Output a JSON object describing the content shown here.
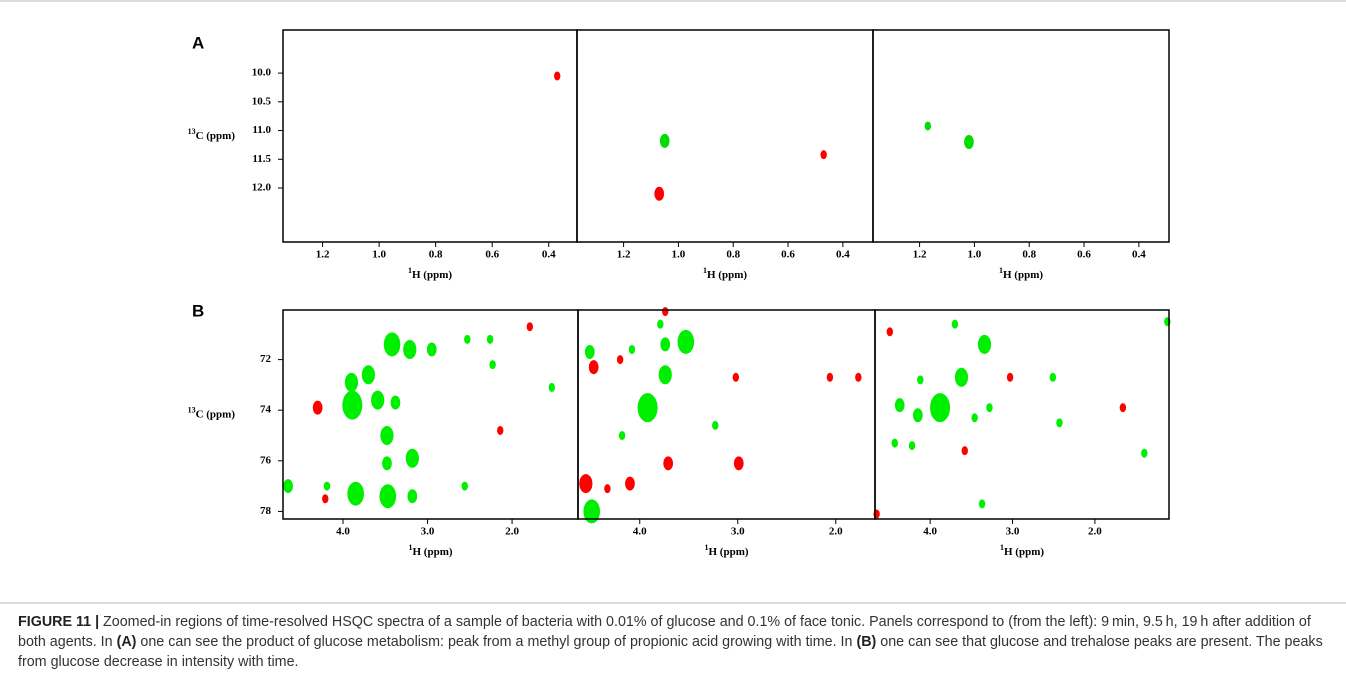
{
  "panel_labels": [
    "A",
    "B"
  ],
  "chart_data": [
    {
      "type": "scatter",
      "xlim": [
        1.34,
        0.3
      ],
      "ylim": [
        9.25,
        12.94
      ],
      "xticks": [
        1.2,
        {
          "value": 1,
          "label": "1.0"
        },
        0.8,
        0.6,
        0.4
      ],
      "yticks": [
        {
          "value": 10,
          "label": "10.0"
        },
        10.5,
        {
          "value": 11,
          "label": "11.0"
        },
        11.5,
        {
          "value": 12,
          "label": "12.0"
        }
      ],
      "x_label": {
        "sup": "1",
        "text": "H (ppm)"
      },
      "y_label": {
        "sup": "13",
        "text": "C (ppm)"
      },
      "series": [
        {
          "color": "#ff0000",
          "x": [
            0.37
          ],
          "y": [
            10.05
          ],
          "sizes": [
            1
          ]
        }
      ]
    },
    {
      "type": "scatter",
      "xlim": [
        1.37,
        0.29
      ],
      "ylim": [
        9.25,
        12.94
      ],
      "xticks": [
        1.2,
        {
          "value": 1,
          "label": "1.0"
        },
        0.8,
        0.6,
        0.4
      ],
      "x_label": {
        "sup": "1",
        "text": "H (ppm)"
      },
      "series": [
        {
          "color": "#00dd00",
          "x": [
            1.05
          ],
          "y": [
            11.18
          ],
          "sizes": [
            2
          ]
        },
        {
          "color": "#ff0000",
          "x": [
            0.47,
            1.07
          ],
          "y": [
            11.42,
            12.1
          ],
          "sizes": [
            1,
            2
          ]
        }
      ]
    },
    {
      "type": "scatter",
      "xlim": [
        1.37,
        0.29
      ],
      "ylim": [
        9.25,
        12.94
      ],
      "xticks": [
        1.2,
        {
          "value": 1,
          "label": "1.0"
        },
        0.8,
        0.6,
        0.4
      ],
      "x_label": {
        "sup": "1",
        "text": "H (ppm)"
      },
      "series": [
        {
          "color": "#00dd00",
          "x": [
            1.02,
            1.17
          ],
          "y": [
            11.2,
            10.92
          ],
          "sizes": [
            2,
            1
          ]
        }
      ]
    },
    {
      "type": "scatter",
      "xlim": [
        4.71,
        1.22
      ],
      "ylim": [
        70.04,
        78.3
      ],
      "xticks": [
        {
          "value": 4,
          "label": "4.0"
        },
        {
          "value": 3,
          "label": "3.0"
        },
        {
          "value": 2,
          "label": "2.0"
        }
      ],
      "yticks": [
        72,
        74,
        76,
        78
      ],
      "x_label": {
        "sup": "1",
        "text": "H (ppm)"
      },
      "y_label": {
        "sup": "13",
        "text": "C (ppm)"
      },
      "series": [
        {
          "color": "#00ee00",
          "x": [
            3.42,
            3.7,
            3.59,
            3.89,
            3.9,
            3.38,
            3.21,
            2.95,
            3.48,
            3.18,
            3.48,
            3.47,
            3.85,
            3.18,
            4.65,
            2.53,
            2.26,
            2.23,
            1.53,
            2.56,
            4.19
          ],
          "y": [
            71.4,
            72.6,
            73.6,
            73.8,
            72.9,
            73.7,
            71.6,
            71.6,
            75.0,
            75.9,
            76.1,
            77.4,
            77.3,
            77.4,
            77.0,
            71.2,
            71.2,
            72.2,
            73.1,
            77.0,
            77.0
          ],
          "sizes": [
            4,
            3,
            3,
            5,
            3,
            2,
            3,
            2,
            3,
            3,
            2,
            4,
            4,
            2,
            2,
            1,
            1,
            1,
            1,
            1,
            1
          ]
        },
        {
          "color": "#ff0000",
          "x": [
            4.3,
            2.14,
            1.79,
            4.21
          ],
          "y": [
            73.9,
            74.8,
            70.7,
            77.5
          ],
          "sizes": [
            2,
            1,
            1,
            1
          ]
        }
      ]
    },
    {
      "type": "scatter",
      "xlim": [
        4.63,
        1.6
      ],
      "ylim": [
        70.04,
        78.3
      ],
      "xticks": [
        {
          "value": 4,
          "label": "4.0"
        },
        {
          "value": 3,
          "label": "3.0"
        },
        {
          "value": 2,
          "label": "2.0"
        }
      ],
      "x_label": {
        "sup": "1",
        "text": "H (ppm)"
      },
      "series": [
        {
          "color": "#00ee00",
          "x": [
            3.53,
            3.92,
            3.74,
            3.74,
            4.51,
            4.08,
            4.49,
            3.23,
            4.18,
            3.79
          ],
          "y": [
            71.3,
            73.9,
            72.6,
            71.4,
            71.7,
            71.6,
            78.0,
            74.6,
            75.0,
            70.6
          ],
          "sizes": [
            4,
            5,
            3,
            2,
            2,
            1,
            4,
            1,
            1,
            1
          ]
        },
        {
          "color": "#ff0000",
          "x": [
            4.47,
            4.55,
            4.1,
            4.33,
            3.71,
            2.99,
            3.02,
            2.06,
            1.77,
            4.2,
            3.74
          ],
          "y": [
            72.3,
            76.9,
            76.9,
            77.1,
            76.1,
            76.1,
            72.7,
            72.7,
            72.7,
            72.0,
            70.1
          ],
          "sizes": [
            2,
            3,
            2,
            1,
            2,
            2,
            1,
            1,
            1,
            1,
            1
          ]
        }
      ]
    },
    {
      "type": "scatter",
      "xlim": [
        4.67,
        1.1
      ],
      "ylim": [
        70.04,
        78.3
      ],
      "xticks": [
        {
          "value": 4,
          "label": "4.0"
        },
        {
          "value": 3,
          "label": "3.0"
        },
        {
          "value": 2,
          "label": "2.0"
        }
      ],
      "x_label": {
        "sup": "1",
        "text": "H (ppm)"
      },
      "series": [
        {
          "color": "#00ee00",
          "x": [
            3.34,
            3.88,
            3.62,
            4.37,
            4.15,
            4.12,
            4.43,
            4.22,
            3.46,
            3.28,
            2.43,
            2.51,
            3.7,
            3.37,
            1.4,
            1.12
          ],
          "y": [
            71.4,
            73.9,
            72.7,
            73.8,
            74.2,
            72.8,
            75.3,
            75.4,
            74.3,
            73.9,
            74.5,
            72.7,
            70.6,
            77.7,
            75.7,
            70.5
          ],
          "sizes": [
            3,
            5,
            3,
            2,
            2,
            1,
            1,
            1,
            1,
            1,
            1,
            1,
            1,
            1,
            1,
            1
          ]
        },
        {
          "color": "#ff0000",
          "x": [
            4.49,
            3.03,
            3.58,
            1.66,
            4.65
          ],
          "y": [
            70.9,
            72.7,
            75.6,
            73.9,
            78.1
          ],
          "sizes": [
            1,
            1,
            1,
            1,
            1
          ]
        }
      ]
    }
  ],
  "caption": {
    "label": "FIGURE 11 |",
    "parts": [
      " Zoomed-in regions of time-resolved HSQC spectra of a sample of bacteria with 0.01% of glucose and 0.1% of face tonic. Panels correspond to (from the left): 9 min, 9.5 h, 19 h after addition of both agents. In ",
      "(A)",
      " one can see the product of glucose metabolism: peak from a methyl group of propionic acid growing with time. In ",
      "(B)",
      " one can see that glucose and trehalose peaks are present. The peaks from glucose decrease in intensity with time."
    ]
  }
}
